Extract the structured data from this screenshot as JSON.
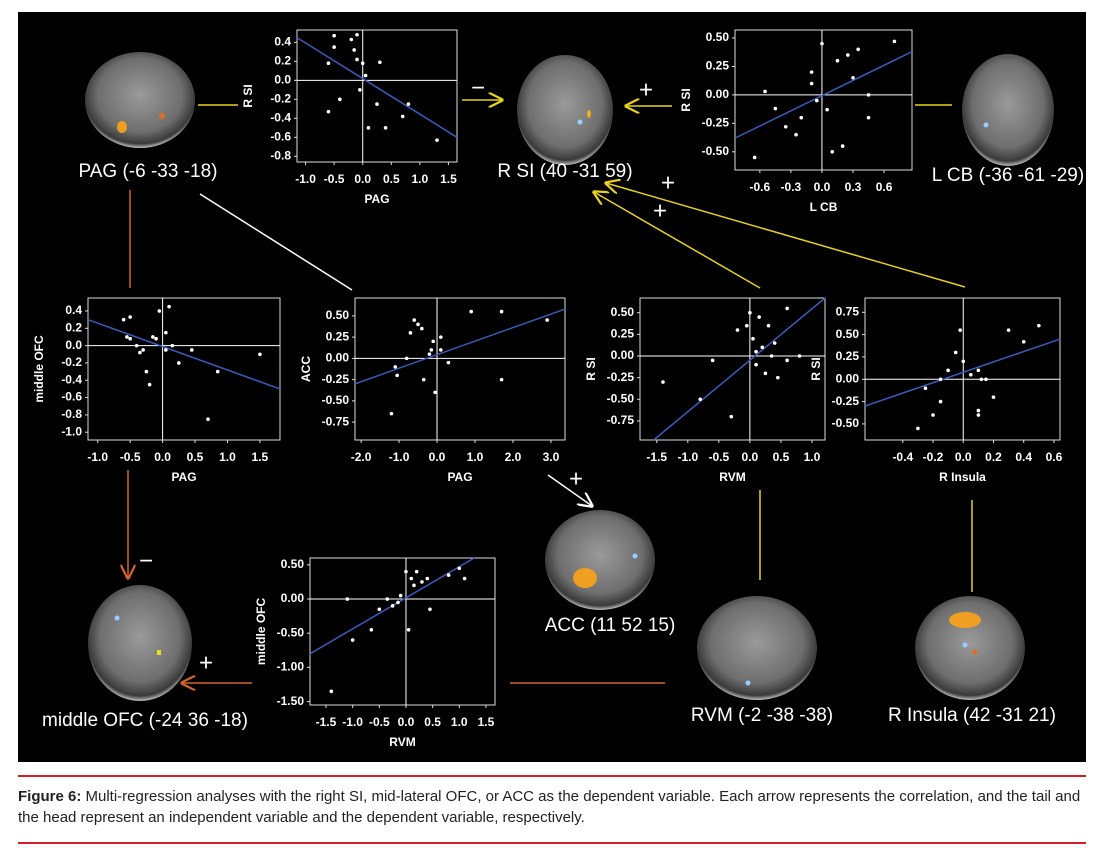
{
  "chart_data": [
    {
      "type": "scatter",
      "x_label": "PAG",
      "y_label": "R SI",
      "color": "#ffffff",
      "trend_color": "#3a5bbf",
      "x": [
        -0.5,
        -0.1,
        -0.2,
        -0.5,
        -0.6,
        -0.15,
        0.0,
        0.3,
        0.05,
        -0.05,
        -0.4,
        -0.6,
        0.25,
        0.1,
        0.4,
        0.7,
        0.8,
        1.3,
        -0.1
      ],
      "y": [
        0.47,
        0.48,
        0.43,
        0.35,
        0.18,
        0.32,
        0.18,
        0.19,
        0.05,
        -0.1,
        -0.2,
        -0.33,
        -0.25,
        -0.5,
        -0.5,
        -0.38,
        -0.25,
        -0.63,
        0.22
      ],
      "trend": {
        "x": [
          -1.15,
          1.65
        ],
        "y": [
          0.45,
          -0.6
        ]
      },
      "xlim": [
        -1.15,
        1.65
      ],
      "ylim": [
        -0.86,
        0.53
      ],
      "xticks": [
        {
          "value": -1,
          "label": "-1.0"
        },
        -0.5,
        {
          "value": 0,
          "label": "0.0"
        },
        0.5,
        {
          "value": 1,
          "label": "1.0"
        },
        1.5
      ],
      "yticks": [
        0.4,
        0.2,
        {
          "value": 0,
          "label": "0.0"
        },
        -0.2,
        -0.4,
        -0.6,
        -0.8
      ]
    },
    {
      "type": "scatter",
      "x_label": "L CB",
      "y_label": "R SI",
      "color": "#ffffff",
      "trend_color": "#3a5bbf",
      "x": [
        -0.65,
        -0.55,
        -0.45,
        -0.35,
        -0.25,
        -0.2,
        -0.1,
        -0.1,
        -0.05,
        0.0,
        0.05,
        0.1,
        0.15,
        0.2,
        0.25,
        0.3,
        0.35,
        0.45,
        0.45,
        0.7
      ],
      "y": [
        -0.55,
        0.03,
        -0.12,
        -0.28,
        -0.35,
        -0.2,
        0.1,
        0.2,
        -0.05,
        0.45,
        -0.13,
        -0.5,
        0.3,
        -0.45,
        0.35,
        0.15,
        0.4,
        0.0,
        -0.2,
        0.47
      ],
      "trend": {
        "x": [
          -0.84,
          0.87
        ],
        "y": [
          -0.38,
          0.38
        ]
      },
      "xlim": [
        -0.84,
        0.87
      ],
      "ylim": [
        -0.66,
        0.57
      ],
      "xticks": [
        -0.6,
        -0.3,
        {
          "value": 0,
          "label": "0.0"
        },
        0.3,
        0.6
      ],
      "yticks": [
        {
          "value": 0.5,
          "label": "0.50"
        },
        0.25,
        {
          "value": 0,
          "label": "0.00"
        },
        -0.25,
        {
          "value": -0.5,
          "label": "-0.50"
        }
      ]
    },
    {
      "type": "scatter",
      "x_label": "PAG",
      "y_label": "middle OFC",
      "color": "#ffffff",
      "trend_color": "#3a5bbf",
      "x": [
        -0.6,
        -0.5,
        -0.55,
        -0.5,
        -0.35,
        -0.3,
        -0.25,
        -0.2,
        -0.15,
        -0.1,
        -0.05,
        0.05,
        0.05,
        0.1,
        0.15,
        0.25,
        0.45,
        0.85,
        0.7,
        1.5,
        -0.4
      ],
      "y": [
        0.3,
        0.33,
        0.1,
        0.08,
        -0.08,
        -0.05,
        -0.3,
        -0.45,
        0.1,
        0.08,
        0.4,
        0.15,
        -0.05,
        0.45,
        0.0,
        -0.2,
        -0.05,
        -0.3,
        -0.85,
        -0.1,
        0.0
      ],
      "trend": {
        "x": [
          -1.15,
          1.81
        ],
        "y": [
          0.3,
          -0.5
        ]
      },
      "xlim": [
        -1.15,
        1.81
      ],
      "ylim": [
        -1.09,
        0.55
      ],
      "xticks": [
        {
          "value": -1,
          "label": "-1.0"
        },
        -0.5,
        {
          "value": 0,
          "label": "0.0"
        },
        0.5,
        {
          "value": 1,
          "label": "1.0"
        },
        1.5
      ],
      "yticks": [
        0.4,
        0.2,
        {
          "value": 0,
          "label": "0.0"
        },
        -0.2,
        -0.4,
        -0.6,
        -0.8,
        {
          "value": -1,
          "label": "-1.0"
        }
      ]
    },
    {
      "type": "scatter",
      "x_label": "PAG",
      "y_label": "ACC",
      "color": "#ffffff",
      "trend_color": "#3a5bbf",
      "x": [
        -1.2,
        -1.1,
        -1.05,
        -0.8,
        -0.6,
        -0.5,
        -0.4,
        -0.35,
        -0.2,
        -0.15,
        -0.1,
        -0.05,
        0.1,
        0.1,
        0.3,
        0.9,
        1.7,
        1.7,
        2.9,
        -0.7
      ],
      "y": [
        -0.65,
        -0.1,
        -0.2,
        0.0,
        0.45,
        0.4,
        0.35,
        -0.25,
        0.05,
        0.1,
        0.2,
        -0.4,
        0.1,
        0.25,
        -0.05,
        0.55,
        0.55,
        -0.25,
        0.45,
        0.3
      ],
      "trend": {
        "x": [
          -2.16,
          3.37
        ],
        "y": [
          -0.3,
          0.58
        ]
      },
      "xlim": [
        -2.16,
        3.37
      ],
      "ylim": [
        -0.96,
        0.71
      ],
      "xticks": [
        {
          "value": -2,
          "label": "-2.0"
        },
        {
          "value": -1,
          "label": "-1.0"
        },
        {
          "value": 0,
          "label": "0.0"
        },
        {
          "value": 1,
          "label": "1.0"
        },
        {
          "value": 2,
          "label": "2.0"
        },
        {
          "value": 3,
          "label": "3.0"
        }
      ],
      "yticks": [
        {
          "value": 0.5,
          "label": "0.50"
        },
        0.25,
        {
          "value": 0,
          "label": "0.00"
        },
        -0.25,
        {
          "value": -0.5,
          "label": "-0.50"
        },
        -0.75
      ]
    },
    {
      "type": "scatter",
      "x_label": "RVM",
      "y_label": "R SI",
      "color": "#ffffff",
      "trend_color": "#3a5bbf",
      "x": [
        -1.4,
        -0.8,
        -0.6,
        -0.3,
        -0.2,
        0.0,
        0.05,
        0.1,
        0.15,
        0.2,
        0.25,
        0.3,
        0.35,
        0.4,
        0.45,
        0.6,
        0.6,
        0.8,
        0.1,
        -0.05
      ],
      "y": [
        -0.3,
        -0.5,
        -0.05,
        -0.7,
        0.3,
        0.5,
        0.2,
        0.05,
        0.45,
        0.1,
        -0.2,
        0.35,
        0.0,
        0.15,
        -0.25,
        -0.05,
        0.55,
        0.0,
        -0.1,
        0.35
      ],
      "trend": {
        "x": [
          -1.55,
          1.21
        ],
        "y": [
          -0.97,
          0.67
        ]
      },
      "xlim": [
        -1.77,
        1.21
      ],
      "ylim": [
        -0.97,
        0.67
      ],
      "xticks": [
        -1.5,
        {
          "value": -1,
          "label": "-1.0"
        },
        -0.5,
        {
          "value": 0,
          "label": "0.0"
        },
        0.5,
        {
          "value": 1,
          "label": "1.0"
        }
      ],
      "yticks": [
        {
          "value": 0.5,
          "label": "0.50"
        },
        0.25,
        {
          "value": 0,
          "label": "0.00"
        },
        -0.25,
        {
          "value": -0.5,
          "label": "-0.50"
        },
        -0.75
      ]
    },
    {
      "type": "scatter",
      "x_label": "R Insula",
      "y_label": "R SI",
      "color": "#ffffff",
      "trend_color": "#3a5bbf",
      "x": [
        -0.3,
        -0.25,
        -0.2,
        -0.15,
        -0.15,
        -0.1,
        -0.05,
        0.0,
        0.05,
        0.1,
        0.1,
        0.1,
        0.15,
        0.2,
        0.3,
        0.4,
        0.5,
        -0.02,
        0.12
      ],
      "y": [
        -0.55,
        -0.1,
        -0.4,
        -0.25,
        0.0,
        0.1,
        0.3,
        0.2,
        0.05,
        0.1,
        -0.35,
        -0.4,
        0.0,
        -0.2,
        0.55,
        0.42,
        0.6,
        0.55,
        0.0
      ],
      "trend": {
        "x": [
          -0.65,
          0.64
        ],
        "y": [
          -0.3,
          0.45
        ]
      },
      "xlim": [
        -0.65,
        0.64
      ],
      "ylim": [
        -0.68,
        0.91
      ],
      "xticks": [
        -0.4,
        -0.2,
        {
          "value": 0,
          "label": "0.0"
        },
        0.2,
        0.4,
        0.6
      ],
      "yticks": [
        0.75,
        {
          "value": 0.5,
          "label": "0.50"
        },
        0.25,
        {
          "value": 0,
          "label": "0.00"
        },
        -0.25,
        {
          "value": -0.5,
          "label": "-0.50"
        }
      ]
    },
    {
      "type": "scatter",
      "x_label": "RVM",
      "y_label": "middle OFC",
      "color": "#ffffff",
      "trend_color": "#3a5bbf",
      "x": [
        -1.4,
        -1.1,
        -1.0,
        -0.65,
        -0.5,
        -0.35,
        -0.25,
        -0.15,
        -0.1,
        0.0,
        0.05,
        0.1,
        0.2,
        0.3,
        0.4,
        0.45,
        0.8,
        1.0,
        1.1,
        0.15
      ],
      "y": [
        -1.35,
        0.0,
        -0.6,
        -0.45,
        -0.15,
        0.0,
        -0.1,
        -0.05,
        0.05,
        0.4,
        -0.45,
        0.3,
        0.4,
        0.25,
        0.3,
        -0.15,
        0.35,
        0.45,
        0.3,
        0.2
      ],
      "trend": {
        "x": [
          -1.8,
          1.28
        ],
        "y": [
          -0.8,
          0.6
        ]
      },
      "xlim": [
        -1.8,
        1.67
      ],
      "ylim": [
        -1.55,
        0.6
      ],
      "xticks": [
        -1.5,
        {
          "value": -1,
          "label": "-1.0"
        },
        -0.5,
        {
          "value": 0,
          "label": "0.0"
        },
        0.5,
        {
          "value": 1,
          "label": "1.0"
        },
        1.5
      ],
      "yticks": [
        {
          "value": 0.5,
          "label": "0.50"
        },
        {
          "value": 0,
          "label": "0.00"
        },
        {
          "value": -0.5,
          "label": "-0.50"
        },
        {
          "value": -1,
          "label": "-1.00"
        },
        {
          "value": -1.5,
          "label": "-1.50"
        }
      ]
    }
  ],
  "nodes": [
    {
      "label": "PAG (-6 -33 -18)"
    },
    {
      "label": "R SI (40 -31 59)"
    },
    {
      "label": "L CB (-36 -61 -29)"
    },
    {
      "label": "ACC (11 52 15)"
    },
    {
      "label": "RVM (-2 -38 -38)"
    },
    {
      "label": "R Insula (42 -31 21)"
    },
    {
      "label": "middle OFC (-24 36 -18)"
    }
  ],
  "signs": [
    "−",
    "+",
    "+",
    "+",
    "−",
    "+",
    "+"
  ],
  "caption": {
    "label": "Figure 6:",
    "text": "Multi-regression analyses with the right SI, mid-lateral OFC, or ACC as the dependent variable. Each arrow represents the correlation, and the tail and the head represent an independent variable and the dependent variable, respectively."
  }
}
